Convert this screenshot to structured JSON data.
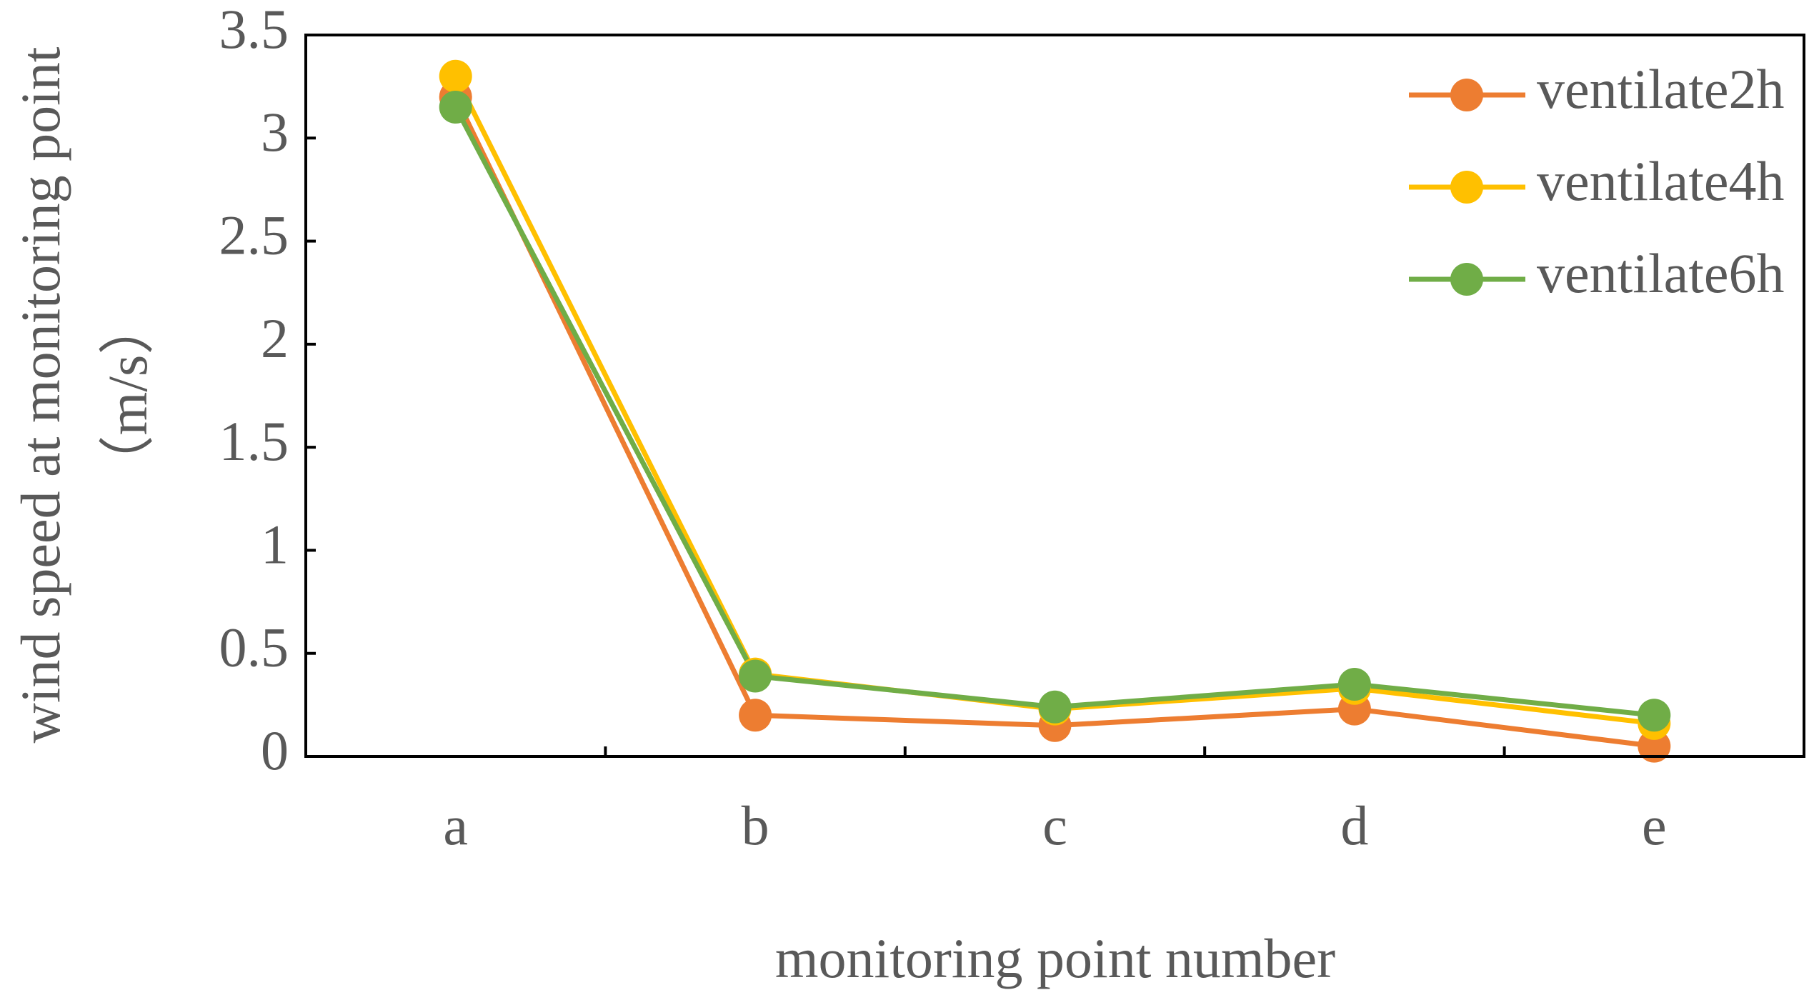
{
  "chart_data": {
    "type": "line",
    "xlabel": "monitoring point number",
    "ylabel": [
      "wind speed at monitoring point",
      "（m/s）"
    ],
    "categories": [
      "a",
      "b",
      "c",
      "d",
      "e"
    ],
    "series": [
      {
        "name": "ventilate2h",
        "color": "#ed7d31",
        "values": [
          3.2,
          0.2,
          0.15,
          0.23,
          0.05
        ]
      },
      {
        "name": "ventilate4h",
        "color": "#ffc000",
        "values": [
          3.3,
          0.4,
          0.23,
          0.33,
          0.16
        ]
      },
      {
        "name": "ventilate6h",
        "color": "#70ad47",
        "values": [
          3.15,
          0.39,
          0.24,
          0.35,
          0.2
        ]
      }
    ],
    "ylim": [
      0,
      3.5
    ],
    "yticks": [
      0,
      0.5,
      1,
      1.5,
      2,
      2.5,
      3,
      3.5
    ],
    "legend": "top-right"
  }
}
